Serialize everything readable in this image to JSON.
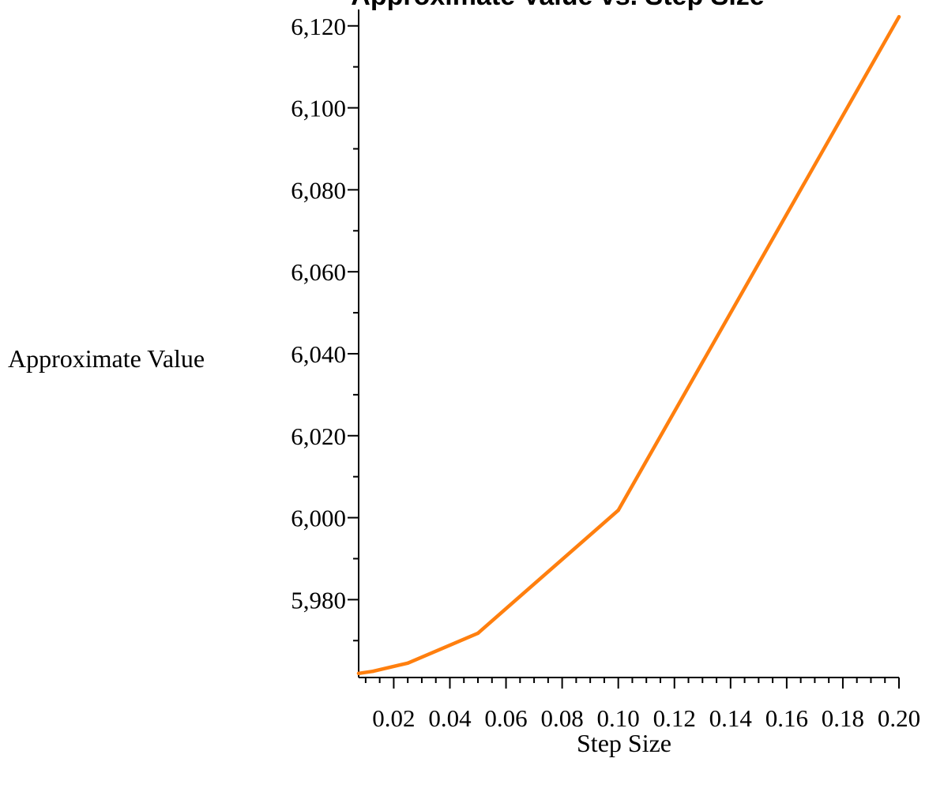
{
  "chart_data": {
    "type": "line",
    "title": "Approximate Value vs. Step Size",
    "xlabel": "Step Size",
    "ylabel": "Approximate Value",
    "xlim": [
      0.0075,
      0.2
    ],
    "ylim": [
      5961,
      6124
    ],
    "x_ticks": [
      0.02,
      0.04,
      0.06,
      0.08,
      0.1,
      0.12,
      0.14,
      0.16,
      0.18,
      0.2
    ],
    "x_tick_labels": [
      "0.02",
      "0.04",
      "0.06",
      "0.08",
      "0.10",
      "0.12",
      "0.14",
      "0.16",
      "0.18",
      "0.20"
    ],
    "y_ticks": [
      5980,
      6000,
      6020,
      6040,
      6060,
      6080,
      6100,
      6120
    ],
    "y_tick_labels": [
      "5,980",
      "6,000",
      "6,020",
      "6,040",
      "6,060",
      "6,080",
      "6,100",
      "6,120"
    ],
    "grid": false,
    "series": [
      {
        "x": [
          0.0075,
          0.0125,
          0.025,
          0.05,
          0.1,
          0.2
        ],
        "y": [
          5962.0,
          5962.5,
          5964.5,
          5971.8,
          6001.8,
          6122.2
        ]
      }
    ],
    "colors": {
      "series": "#ff7f0e",
      "axis": "#000000"
    }
  }
}
